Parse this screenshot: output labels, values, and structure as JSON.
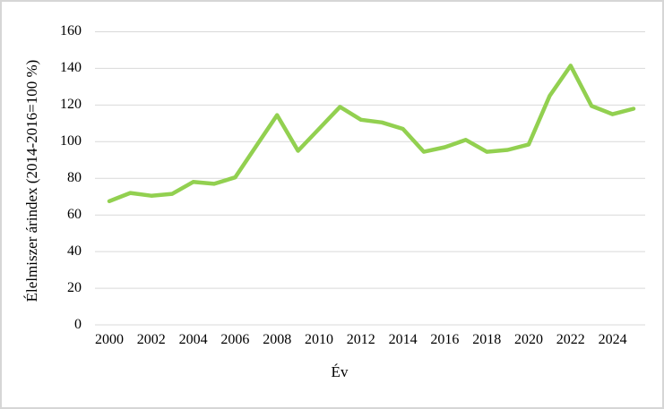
{
  "chart": {
    "background_color": "#ffffff",
    "frame_border_color": "#d6d6d6"
  },
  "chart_data": {
    "type": "line",
    "title": "",
    "xlabel": "Év",
    "ylabel": "Élelmiszer árindex (2014-2016=100 %)",
    "series": [
      {
        "name": "Élelmiszer árindex",
        "x": [
          2000,
          2001,
          2002,
          2003,
          2004,
          2005,
          2006,
          2007,
          2008,
          2009,
          2010,
          2011,
          2012,
          2013,
          2014,
          2015,
          2016,
          2017,
          2018,
          2019,
          2020,
          2021,
          2022,
          2023,
          2024,
          2025
        ],
        "values": [
          67.5,
          72,
          70.5,
          71.5,
          78,
          77,
          80.5,
          97.5,
          114.5,
          95,
          107,
          119,
          112,
          110.5,
          107,
          94.5,
          97,
          101,
          94.5,
          95.5,
          98.5,
          125,
          141.5,
          119.5,
          115,
          118
        ]
      }
    ],
    "ylim": [
      0,
      160
    ],
    "yticks": [
      0,
      20,
      40,
      60,
      80,
      100,
      120,
      140,
      160
    ],
    "xticks": [
      2000,
      2002,
      2004,
      2006,
      2008,
      2010,
      2012,
      2014,
      2016,
      2018,
      2020,
      2022,
      2024
    ],
    "grid": "horizontal",
    "legend": "none",
    "line_color": "#92D050",
    "gridline_color": "#D9D9D9",
    "tick_label_color": "#000000"
  }
}
